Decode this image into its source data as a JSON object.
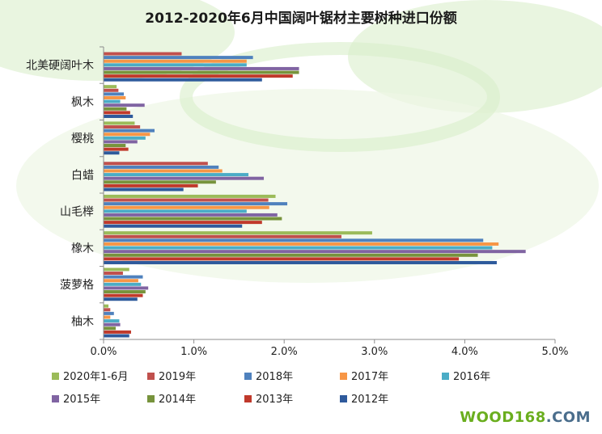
{
  "page_title": "2012-2020年6月中国阔叶锯材主要树种进口份额",
  "watermark": {
    "part1": "WOOD168",
    "part2": ".COM"
  },
  "colors": {
    "background_green": "#d9efc9",
    "axis": "#8c8c8c",
    "text": "#222222"
  },
  "chart_data": {
    "type": "bar",
    "orientation": "horizontal",
    "title": "2012-2020年6月中国阔叶锯材主要树种进口份额",
    "categories": [
      "北美硬阔叶木",
      "枫木",
      "樱桃",
      "白蜡",
      "山毛榉",
      "橡木",
      "菠萝格",
      "柚木"
    ],
    "x_ticks": [
      "0.0%",
      "1.0%",
      "2.0%",
      "3.0%",
      "4.0%",
      "5.0%"
    ],
    "xlim": [
      0,
      5
    ],
    "unit": "%",
    "grid": false,
    "legend_position": "bottom",
    "series": [
      {
        "name": "2020年1-6月",
        "color": "#9bbb59",
        "values": [
          0.0,
          0.14,
          0.34,
          0.0,
          1.9,
          2.97,
          0.28,
          0.05
        ]
      },
      {
        "name": "2019年",
        "color": "#c0504d",
        "values": [
          0.86,
          0.16,
          0.4,
          1.15,
          1.82,
          2.63,
          0.21,
          0.07
        ]
      },
      {
        "name": "2018年",
        "color": "#4f81bd",
        "values": [
          1.65,
          0.22,
          0.56,
          1.27,
          2.03,
          4.2,
          0.43,
          0.11
        ]
      },
      {
        "name": "2017年",
        "color": "#f79646",
        "values": [
          1.58,
          0.24,
          0.51,
          1.31,
          1.83,
          4.37,
          0.38,
          0.07
        ]
      },
      {
        "name": "2016年",
        "color": "#4bacc6",
        "values": [
          1.58,
          0.18,
          0.46,
          1.6,
          1.58,
          4.3,
          0.41,
          0.17
        ]
      },
      {
        "name": "2015年",
        "color": "#8064a2",
        "values": [
          2.16,
          0.45,
          0.37,
          1.77,
          1.92,
          4.67,
          0.49,
          0.18
        ]
      },
      {
        "name": "2014年",
        "color": "#77933c",
        "values": [
          2.16,
          0.25,
          0.24,
          1.24,
          1.97,
          4.14,
          0.46,
          0.13
        ]
      },
      {
        "name": "2013年",
        "color": "#c0392b",
        "values": [
          2.09,
          0.29,
          0.27,
          1.04,
          1.75,
          3.93,
          0.43,
          0.3
        ]
      },
      {
        "name": "2012年",
        "color": "#2e5a9c",
        "values": [
          1.75,
          0.32,
          0.17,
          0.88,
          1.53,
          4.35,
          0.37,
          0.28
        ]
      }
    ]
  }
}
